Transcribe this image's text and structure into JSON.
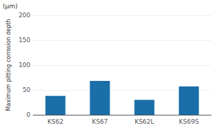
{
  "chart_data": {
    "type": "bar",
    "categories": [
      "KS62",
      "KS67",
      "KS62L",
      "KS69S"
    ],
    "values": [
      38,
      68,
      30,
      57
    ],
    "color": "#1a6fa8",
    "ylabel": "Maximum pitting corrosion depth",
    "annotations": [
      "(μm)"
    ],
    "ylim": [
      0,
      200
    ],
    "yticks": [
      0,
      50,
      100,
      150,
      200
    ],
    "grid": true
  }
}
